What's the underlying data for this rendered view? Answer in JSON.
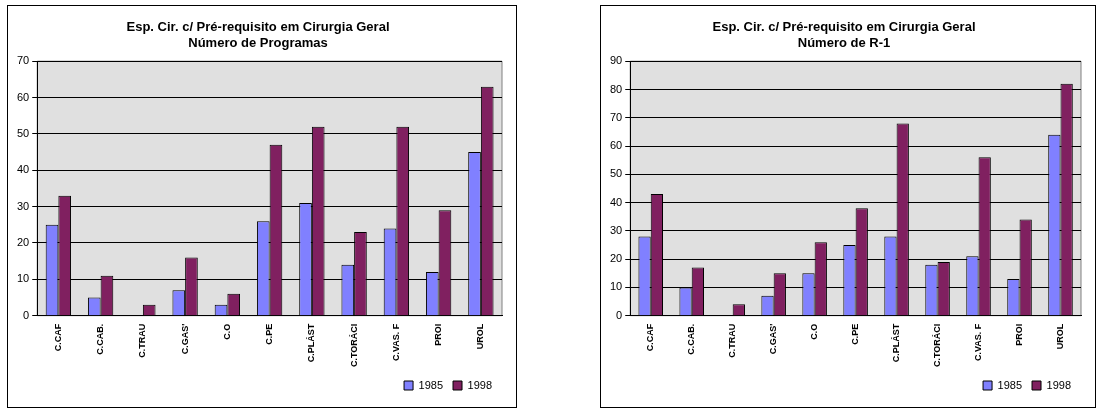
{
  "chart_data": [
    {
      "type": "bar",
      "title": [
        "Esp. Cir. c/ Pré-requisito em Cirurgia Geral",
        "Número de Programas"
      ],
      "categories": [
        "C.CAF",
        "C.CAB.",
        "C.TRAU",
        "C.GAS'",
        "C.O",
        "C.PE",
        "C.PLÁST",
        "C.TORÁCI",
        "C.VAS. F",
        "PROI",
        "UROL"
      ],
      "series": [
        {
          "name": "1985",
          "color": "#8080ff",
          "values": [
            25,
            5,
            0,
            7,
            3,
            26,
            31,
            14,
            24,
            12,
            45
          ]
        },
        {
          "name": "1998",
          "color": "#802060",
          "values": [
            33,
            11,
            3,
            16,
            6,
            47,
            52,
            23,
            52,
            29,
            63
          ]
        }
      ],
      "ylim": [
        0,
        70
      ],
      "yticks": [
        0,
        10,
        20,
        30,
        40,
        50,
        60,
        70
      ],
      "grid": "y",
      "legend": "bottom right"
    },
    {
      "type": "bar",
      "title": [
        "Esp. Cir. c/ Pré-requisito em Cirurgia Geral",
        "Número de R-1"
      ],
      "categories": [
        "C.CAF",
        "C.CAB.",
        "C.TRAU",
        "C.GAS'",
        "C.O",
        "C.PE",
        "C.PLÁST",
        "C.TORÁCI",
        "C.VAS. F",
        "PROI",
        "UROL"
      ],
      "series": [
        {
          "name": "1985",
          "color": "#8080ff",
          "values": [
            28,
            10,
            0,
            7,
            15,
            25,
            28,
            18,
            21,
            13,
            64
          ]
        },
        {
          "name": "1998",
          "color": "#802060",
          "values": [
            43,
            17,
            4,
            15,
            26,
            38,
            68,
            19,
            56,
            34,
            82
          ]
        }
      ],
      "ylim": [
        0,
        90
      ],
      "yticks": [
        0,
        10,
        20,
        30,
        40,
        50,
        60,
        70,
        80,
        90
      ],
      "grid": "y",
      "legend": "bottom right"
    }
  ]
}
